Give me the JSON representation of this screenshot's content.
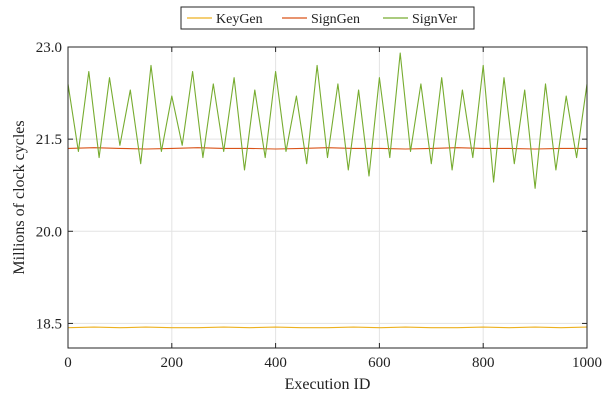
{
  "chart_data": {
    "type": "line",
    "title": "",
    "xlabel": "Execution ID",
    "ylabel": "Millions of clock cycles",
    "xlim": [
      0,
      1000
    ],
    "ylim": [
      18.1,
      23.0
    ],
    "xticks": [
      0,
      200,
      400,
      600,
      800,
      1000
    ],
    "xtick_labels": [
      "0",
      "200",
      "400",
      "600",
      "800",
      "1000"
    ],
    "yticks": [
      18.5,
      20.0,
      21.5,
      23.0
    ],
    "ytick_labels": [
      "18.5",
      "20.0",
      "21.5",
      "23.0"
    ],
    "grid": true,
    "legend_position": "top-center",
    "series": [
      {
        "name": "KeyGen",
        "color": "#EDB120",
        "x": [
          0,
          50,
          100,
          150,
          200,
          250,
          300,
          350,
          400,
          450,
          500,
          550,
          600,
          650,
          700,
          750,
          800,
          850,
          900,
          950,
          1000
        ],
        "values": [
          18.43,
          18.44,
          18.43,
          18.44,
          18.43,
          18.43,
          18.44,
          18.43,
          18.44,
          18.43,
          18.43,
          18.44,
          18.43,
          18.44,
          18.43,
          18.43,
          18.44,
          18.43,
          18.44,
          18.43,
          18.44
        ]
      },
      {
        "name": "SignGen",
        "color": "#D95319",
        "x": [
          0,
          50,
          100,
          150,
          200,
          250,
          300,
          350,
          400,
          450,
          500,
          550,
          600,
          650,
          700,
          750,
          800,
          850,
          900,
          950,
          1000
        ],
        "values": [
          21.35,
          21.36,
          21.35,
          21.34,
          21.35,
          21.36,
          21.35,
          21.35,
          21.34,
          21.35,
          21.36,
          21.35,
          21.35,
          21.34,
          21.35,
          21.36,
          21.35,
          21.35,
          21.34,
          21.35,
          21.35
        ]
      },
      {
        "name": "SignVer",
        "color": "#77AC30",
        "x": [
          0,
          20,
          40,
          60,
          80,
          100,
          120,
          140,
          160,
          180,
          200,
          220,
          240,
          260,
          280,
          300,
          320,
          340,
          360,
          380,
          400,
          420,
          440,
          460,
          480,
          500,
          520,
          540,
          560,
          580,
          600,
          620,
          640,
          660,
          680,
          700,
          720,
          740,
          760,
          780,
          800,
          820,
          840,
          860,
          880,
          900,
          920,
          940,
          960,
          980,
          1000
        ],
        "values": [
          22.4,
          21.3,
          22.6,
          21.2,
          22.5,
          21.4,
          22.3,
          21.1,
          22.7,
          21.3,
          22.2,
          21.4,
          22.6,
          21.2,
          22.4,
          21.3,
          22.5,
          21.0,
          22.3,
          21.2,
          22.6,
          21.3,
          22.2,
          21.1,
          22.7,
          21.2,
          22.4,
          21.0,
          22.3,
          20.9,
          22.5,
          21.2,
          22.9,
          21.3,
          22.4,
          21.1,
          22.5,
          21.0,
          22.3,
          21.2,
          22.7,
          20.8,
          22.5,
          21.1,
          22.3,
          20.7,
          22.4,
          21.0,
          22.2,
          21.2,
          22.4
        ]
      }
    ]
  }
}
